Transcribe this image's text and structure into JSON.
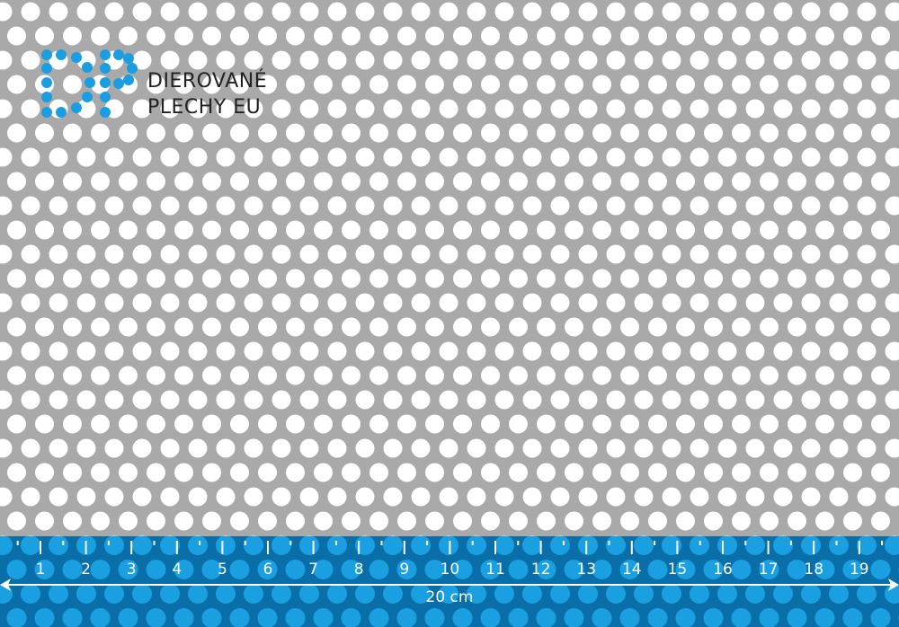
{
  "brand": {
    "logo_letters": "DP",
    "line1": "DIEROVANÉ",
    "line2": "PLECHY EU"
  },
  "ruler": {
    "labels": [
      "1",
      "2",
      "3",
      "4",
      "5",
      "6",
      "7",
      "8",
      "9",
      "10",
      "11",
      "12",
      "13",
      "14",
      "15",
      "16",
      "17",
      "18",
      "19"
    ],
    "length_label": "20 cm"
  },
  "colors": {
    "sheet": "#a9a9a9",
    "hole": "#ffffff",
    "ruler_band": "#0a6fa8",
    "ruler_hole": "#1aa0e0",
    "logo_blue": "#1a9ee0",
    "text": "#222222"
  }
}
